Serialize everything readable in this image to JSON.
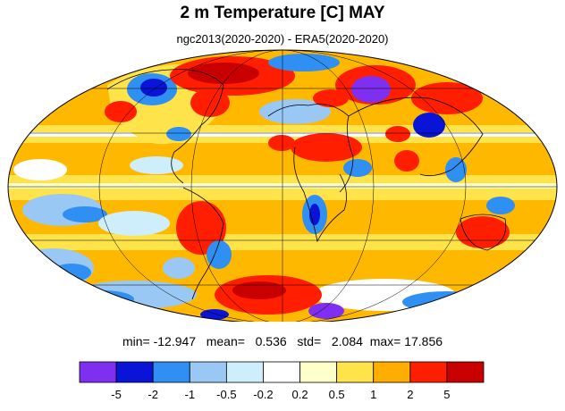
{
  "figure": {
    "title": "2 m Temperature [C] MAY",
    "subtitle": "ngc2013(2020-2020) - ERA5(2020-2020)"
  },
  "stats": {
    "min_label": "min=",
    "min": "-12.947",
    "mean_label": "mean=",
    "mean": "0.536",
    "std_label": "std=",
    "std": "2.084",
    "max_label": "max=",
    "max": "17.856"
  },
  "colorbar": {
    "colors": [
      "#7f2ff0",
      "#0a14d6",
      "#2f8ff2",
      "#99c8f5",
      "#cdeefa",
      "#ffffff",
      "#ffffc9",
      "#ffe34b",
      "#ffae00",
      "#ff1e00",
      "#c80000"
    ],
    "tick_labels": [
      "-5",
      "-2",
      "-1",
      "-0.5",
      "-0.2",
      "0.2",
      "0.5",
      "1",
      "2",
      "5"
    ]
  },
  "map": {
    "projection": "mollweide",
    "background_color": "#ffb800"
  }
}
